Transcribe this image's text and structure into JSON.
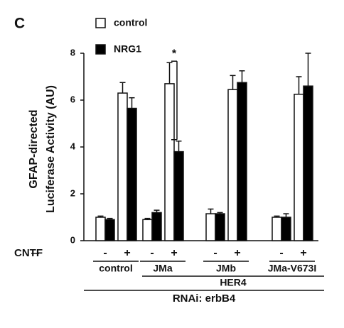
{
  "chart_data": {
    "type": "bar",
    "panel_label": "C",
    "ylabel": [
      "GFAP-directed",
      "Luciferase Activity (AU)"
    ],
    "xlabel": "CNTF",
    "categories": [
      "-",
      "+",
      "-",
      "+",
      "-",
      "+",
      "-",
      "+"
    ],
    "groups": [
      "control",
      "JMa",
      "JMb",
      "JMa-V673I"
    ],
    "group_label": "HER4",
    "outer_label": "RNAi: erbB4",
    "series": [
      {
        "name": "control",
        "color": "#ffffff",
        "values": [
          1.0,
          6.3,
          0.9,
          6.7,
          1.15,
          6.45,
          1.0,
          6.25
        ],
        "errors": [
          0.05,
          0.45,
          0.05,
          0.9,
          0.2,
          0.6,
          0.05,
          0.75
        ]
      },
      {
        "name": "NRG1",
        "color": "#000000",
        "values": [
          0.9,
          5.65,
          1.2,
          3.8,
          1.15,
          6.75,
          1.0,
          6.6
        ],
        "errors": [
          0.05,
          0.45,
          0.1,
          0.45,
          0.05,
          0.5,
          0.15,
          1.4
        ]
      }
    ],
    "annotation": "*",
    "ylim": [
      0,
      8
    ],
    "yticks": [
      0,
      2,
      4,
      6,
      8
    ]
  }
}
